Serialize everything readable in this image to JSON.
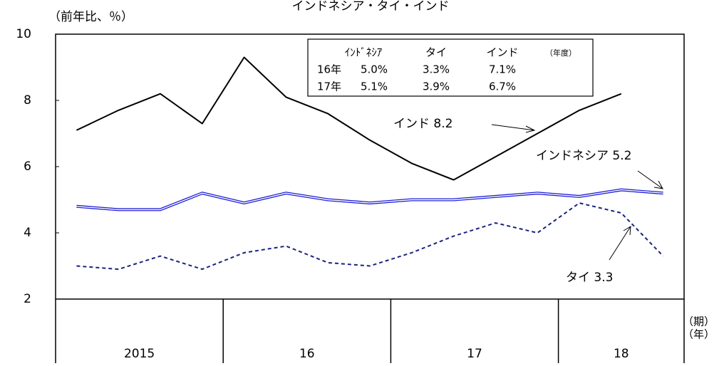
{
  "chart_data": {
    "type": "line",
    "title": "インドネシア・タイ・インド",
    "y_label": "（前年比、％）",
    "x_label_period": "（期）",
    "x_label_year": "（年）",
    "categories": [
      null,
      null,
      null,
      null,
      null,
      null,
      null,
      null,
      null,
      null,
      null,
      null,
      null,
      null,
      null
    ],
    "groups": [
      {
        "label": "2015",
        "span": 4
      },
      {
        "label": "16",
        "span": 4
      },
      {
        "label": "17",
        "span": 4
      },
      {
        "label": "18",
        "span": 3
      }
    ],
    "ylim": [
      2,
      10
    ],
    "yticks": [
      2,
      4,
      6,
      8,
      10
    ],
    "grid": false,
    "series": [
      {
        "name": "インド",
        "color": "#000000",
        "style": "solid",
        "values": [
          7.1,
          7.7,
          8.2,
          7.3,
          9.3,
          8.1,
          7.6,
          6.8,
          6.1,
          5.6,
          6.3,
          7.0,
          7.7,
          8.2,
          null
        ]
      },
      {
        "name": "インドネシア",
        "color": "#1f1fd6",
        "style": "double",
        "values": [
          4.8,
          4.7,
          4.7,
          5.2,
          4.9,
          5.2,
          5.0,
          4.9,
          5.0,
          5.0,
          5.1,
          5.2,
          5.1,
          5.3,
          5.2
        ]
      },
      {
        "name": "タイ",
        "color": "#1a237e",
        "style": "dashed",
        "values": [
          3.0,
          2.9,
          3.3,
          2.9,
          3.4,
          3.6,
          3.1,
          3.0,
          3.4,
          3.9,
          4.3,
          4.0,
          4.9,
          4.6,
          3.3
        ]
      }
    ],
    "annotations": [
      "インド 8.2",
      "インドネシア 5.2",
      "タイ 3.3"
    ],
    "table": {
      "header": [
        "ｲﾝﾄﾞﾈｼｱ",
        "タイ",
        "インド",
        "（年度）"
      ],
      "rows": [
        [
          "16年",
          "5.0%",
          "3.3%",
          "7.1%"
        ],
        [
          "17年",
          "5.1%",
          "3.9%",
          "6.7%"
        ]
      ]
    }
  }
}
